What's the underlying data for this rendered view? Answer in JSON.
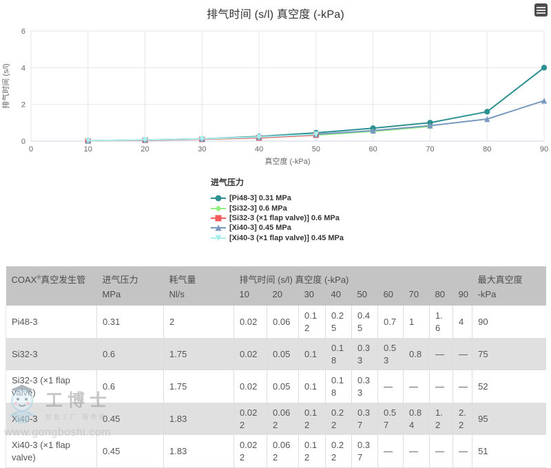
{
  "chart_data": {
    "type": "line",
    "title": "排气时间 (s/l) 真空度 (-kPa)",
    "xlabel": "真空度 (-kPa)",
    "ylabel": "排气时间 (s/l)",
    "xlim": [
      0,
      90
    ],
    "ylim": [
      0,
      6
    ],
    "x_ticks": [
      0,
      10,
      20,
      30,
      40,
      50,
      60,
      70,
      80,
      90
    ],
    "y_ticks": [
      0,
      2,
      4,
      6
    ],
    "grid": true,
    "legend_title": "进气压力",
    "legend_position": "bottom-left",
    "x": [
      10,
      20,
      30,
      40,
      50,
      60,
      70,
      80,
      90
    ],
    "series": [
      {
        "name": "[Pi48-3] 0.31 MPa",
        "color": "#2b908f",
        "marker": "circle",
        "values": [
          0.02,
          0.06,
          0.12,
          0.25,
          0.45,
          0.7,
          1,
          1.6,
          4
        ]
      },
      {
        "name": "[Si32-3] 0.6 MPa",
        "color": "#90ee7e",
        "marker": "diamond",
        "values": [
          0.02,
          0.05,
          0.1,
          0.18,
          0.33,
          0.53,
          0.8
        ]
      },
      {
        "name": "[Si32-3 (×1 flap valve)] 0.6 MPa",
        "color": "#f45b5b",
        "marker": "square",
        "values": [
          0.02,
          0.05,
          0.1,
          0.18,
          0.33
        ]
      },
      {
        "name": "[Xi40-3] 0.45 MPa",
        "color": "#7798bf",
        "marker": "triangle",
        "values": [
          0.022,
          0.062,
          0.12,
          0.22,
          0.37,
          0.57,
          0.84,
          1.2,
          2.2
        ]
      },
      {
        "name": "[Xi40-3 (×1 flap valve)] 0.45 MPa",
        "color": "#aaeeee",
        "marker": "triangle-down",
        "values": [
          0.022,
          0.062,
          0.12,
          0.22,
          0.37
        ]
      }
    ]
  },
  "table": {
    "header": {
      "col1_prefix": "COAX",
      "col1_sup": "®",
      "col1_suffix": "真空发生管",
      "col2": "进气压力",
      "col3": "耗气量",
      "col4": "排气时间 (s/l) 真空度 (-kPa)",
      "col5": "最大真空度",
      "unit2": "MPa",
      "unit3": "Nl/s",
      "ticks": [
        "10",
        "20",
        "30",
        "40",
        "50",
        "60",
        "70",
        "80",
        "90"
      ],
      "unit5": "-kPa"
    },
    "rows": [
      {
        "name": "Pi48-3",
        "pressure": "0.31",
        "consumption": "2",
        "times": [
          "0.02",
          "0.06",
          "0.12",
          "0.25",
          "0.45",
          "0.7",
          "1",
          "1.6",
          "4"
        ],
        "max": "90"
      },
      {
        "name": "Si32-3",
        "pressure": "0.6",
        "consumption": "1.75",
        "times": [
          "0.02",
          "0.05",
          "0.1",
          "0.18",
          "0.33",
          "0.53",
          "0.8",
          "—",
          "—"
        ],
        "max": "75"
      },
      {
        "name": "Si32-3 (×1 flap valve)",
        "pressure": "0.6",
        "consumption": "1.75",
        "times": [
          "0.02",
          "0.05",
          "0.1",
          "0.18",
          "0.33",
          "—",
          "—",
          "—",
          "—"
        ],
        "max": "52"
      },
      {
        "name": "Xi40-3",
        "pressure": "0.45",
        "consumption": "1.83",
        "times": [
          "0.022",
          "0.062",
          "0.12",
          "0.22",
          "0.37",
          "0.57",
          "0.84",
          "1.2",
          "2.2"
        ],
        "max": "95"
      },
      {
        "name": "Xi40-3 (×1 flap valve)",
        "pressure": "0.45",
        "consumption": "1.83",
        "times": [
          "0.022",
          "0.062",
          "0.12",
          "0.22",
          "0.37",
          "—",
          "—",
          "—",
          "—"
        ],
        "max": "51"
      }
    ]
  },
  "colors": {
    "grid": "#e6e6e6",
    "axis_line": "#ccd6eb",
    "tick_label": "#666666",
    "header_bg": "#c4c4c4",
    "row_alt_bg": "#e0e0e0"
  },
  "watermark": {
    "brand": "工博士",
    "tagline": "智能工厂 服务商",
    "url": "www.gongboshi.com"
  }
}
